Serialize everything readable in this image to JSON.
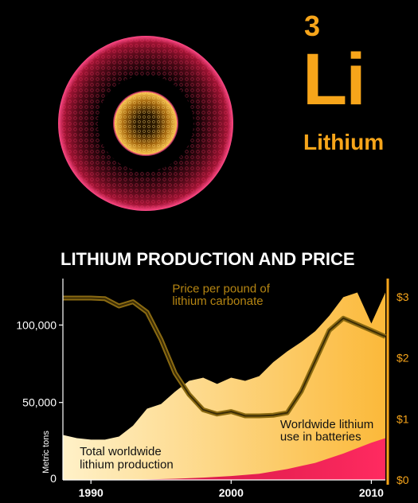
{
  "element": {
    "number": "3",
    "symbol": "Li",
    "name": "Lithium"
  },
  "colors": {
    "accent": "#f7a51a",
    "production_fill": "#fddc8a",
    "battery_fill": "#e8174f",
    "price_line": "#8a6a12"
  },
  "chart_data": {
    "type": "area",
    "title": "LITHIUM PRODUCTION AND PRICE",
    "ylabel": "Metric tons",
    "ylabel_right": "",
    "xlim": [
      1988,
      2011
    ],
    "ylim": [
      0,
      130000
    ],
    "ylim_right": [
      0,
      3.3
    ],
    "x_ticks": [
      1990,
      2000,
      2010
    ],
    "x_tick_labels": [
      "1990",
      "2000",
      "2010"
    ],
    "y_ticks": [
      50000,
      100000
    ],
    "y_tick_labels": [
      "50,000",
      "100,000"
    ],
    "y_ticks_right": [
      0,
      1,
      2,
      3
    ],
    "y_tick_labels_right": [
      "$0",
      "$1",
      "$2",
      "$3"
    ],
    "grid": false,
    "series": [
      {
        "kind": "area",
        "x": [
          1988,
          1989,
          1990,
          1991,
          1992,
          1993,
          1994,
          1995,
          1996,
          1997,
          1998,
          1999,
          2000,
          2001,
          2002,
          2003,
          2004,
          2005,
          2006,
          2007,
          2008,
          2009,
          2010,
          2011
        ],
        "values": [
          29000,
          27000,
          26000,
          26000,
          28000,
          35000,
          46000,
          49000,
          57000,
          64000,
          66000,
          62000,
          66000,
          64000,
          67000,
          76000,
          83000,
          89000,
          96000,
          106000,
          118000,
          121000,
          101000,
          121000
        ]
      },
      {
        "kind": "area",
        "x": [
          1988,
          1990,
          1992,
          1994,
          1996,
          1998,
          2000,
          2002,
          2004,
          2006,
          2008,
          2010,
          2011
        ],
        "values": [
          0,
          0,
          100,
          300,
          800,
          1500,
          2500,
          4000,
          7000,
          11000,
          17000,
          24000,
          27000
        ]
      },
      {
        "kind": "line",
        "axis": "right",
        "x": [
          1988,
          1989,
          1990,
          1991,
          1992,
          1993,
          1994,
          1995,
          1996,
          1997,
          1998,
          1999,
          2000,
          2001,
          2002,
          2003,
          2004,
          2005,
          2006,
          2007,
          2008,
          2009,
          2010,
          2011
        ],
        "values": [
          2.98,
          2.98,
          2.98,
          2.97,
          2.85,
          2.92,
          2.75,
          2.3,
          1.75,
          1.4,
          1.15,
          1.08,
          1.12,
          1.05,
          1.05,
          1.06,
          1.1,
          1.45,
          1.95,
          2.45,
          2.65,
          2.55,
          2.45,
          2.35
        ]
      }
    ],
    "annotations": [
      {
        "text": "Price per pound of",
        "x": 1995.8,
        "y": 121000
      },
      {
        "text": "lithium carbonate",
        "x": 1995.8,
        "y": 113000
      },
      {
        "text": "Worldwide lithium",
        "x": 2003.5,
        "y": 33500
      },
      {
        "text": "use in batteries",
        "x": 2003.5,
        "y": 25500
      },
      {
        "text": "Total worldwide",
        "x": 1989.2,
        "y": 16000
      },
      {
        "text": "lithium production",
        "x": 1989.2,
        "y": 7500
      }
    ]
  }
}
